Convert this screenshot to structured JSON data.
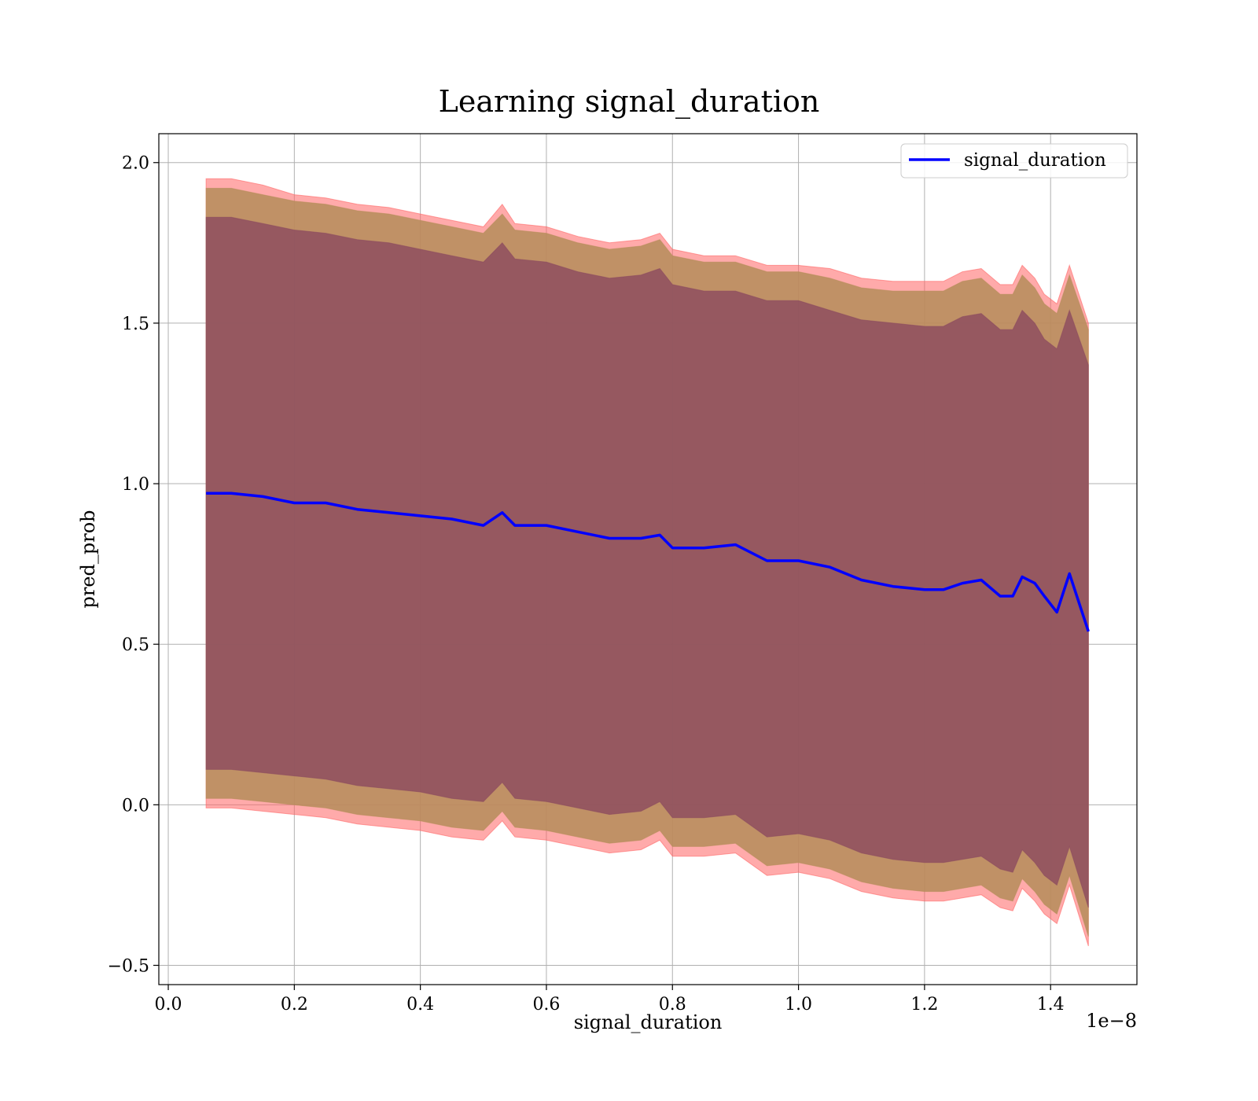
{
  "chart_data": {
    "type": "area",
    "title": "Learning signal_duration",
    "xlabel": "signal_duration",
    "ylabel": "pred_prob",
    "x_offset_label": "1e−8",
    "xlim": [
      -0.015,
      1.537
    ],
    "ylim": [
      -0.56,
      2.09
    ],
    "x_ticks": [
      0.0,
      0.2,
      0.4,
      0.6,
      0.8,
      1.0,
      1.2,
      1.4
    ],
    "x_tick_labels": [
      "0.0",
      "0.2",
      "0.4",
      "0.6",
      "0.8",
      "1.0",
      "1.2",
      "1.4"
    ],
    "y_ticks": [
      -0.5,
      0.0,
      0.5,
      1.0,
      1.5,
      2.0
    ],
    "y_tick_labels": [
      "−0.5",
      "0.0",
      "0.5",
      "1.0",
      "1.5",
      "2.0"
    ],
    "grid": true,
    "legend_position": "top-right",
    "colors": {
      "line": "#0000ff",
      "outer_band": "#ff6464",
      "middle_band": "#b58d5a",
      "inner_band": "#8b4a5f",
      "grid": "#b0b0b0"
    },
    "series": [
      {
        "name": "signal_duration",
        "x": [
          0.06,
          0.1,
          0.15,
          0.2,
          0.25,
          0.3,
          0.35,
          0.4,
          0.45,
          0.5,
          0.53,
          0.55,
          0.6,
          0.65,
          0.7,
          0.75,
          0.78,
          0.8,
          0.85,
          0.9,
          0.95,
          1.0,
          1.05,
          1.1,
          1.15,
          1.2,
          1.23,
          1.26,
          1.29,
          1.32,
          1.34,
          1.355,
          1.375,
          1.39,
          1.41,
          1.43,
          1.46
        ],
        "y": [
          0.97,
          0.97,
          0.96,
          0.94,
          0.94,
          0.92,
          0.91,
          0.9,
          0.89,
          0.87,
          0.91,
          0.87,
          0.87,
          0.85,
          0.83,
          0.83,
          0.84,
          0.8,
          0.8,
          0.81,
          0.76,
          0.76,
          0.74,
          0.7,
          0.68,
          0.67,
          0.67,
          0.69,
          0.7,
          0.65,
          0.65,
          0.71,
          0.69,
          0.65,
          0.6,
          0.72,
          0.54
        ]
      }
    ],
    "bands": [
      {
        "name": "outer",
        "x": [
          0.06,
          0.1,
          0.15,
          0.2,
          0.25,
          0.3,
          0.35,
          0.4,
          0.45,
          0.5,
          0.53,
          0.55,
          0.6,
          0.65,
          0.7,
          0.75,
          0.78,
          0.8,
          0.85,
          0.9,
          0.95,
          1.0,
          1.05,
          1.1,
          1.15,
          1.2,
          1.23,
          1.26,
          1.29,
          1.32,
          1.34,
          1.355,
          1.375,
          1.39,
          1.41,
          1.43,
          1.46
        ],
        "upper": [
          1.95,
          1.95,
          1.93,
          1.9,
          1.89,
          1.87,
          1.86,
          1.84,
          1.82,
          1.8,
          1.87,
          1.81,
          1.8,
          1.77,
          1.75,
          1.76,
          1.78,
          1.73,
          1.71,
          1.71,
          1.68,
          1.68,
          1.67,
          1.64,
          1.63,
          1.63,
          1.63,
          1.66,
          1.67,
          1.62,
          1.62,
          1.68,
          1.64,
          1.59,
          1.56,
          1.68,
          1.5
        ],
        "lower": [
          -0.01,
          -0.01,
          -0.02,
          -0.03,
          -0.04,
          -0.06,
          -0.07,
          -0.08,
          -0.1,
          -0.11,
          -0.05,
          -0.1,
          -0.11,
          -0.13,
          -0.15,
          -0.14,
          -0.11,
          -0.16,
          -0.16,
          -0.15,
          -0.22,
          -0.21,
          -0.23,
          -0.27,
          -0.29,
          -0.3,
          -0.3,
          -0.29,
          -0.28,
          -0.32,
          -0.33,
          -0.26,
          -0.3,
          -0.34,
          -0.37,
          -0.25,
          -0.44
        ]
      },
      {
        "name": "middle",
        "x": [
          0.06,
          0.1,
          0.15,
          0.2,
          0.25,
          0.3,
          0.35,
          0.4,
          0.45,
          0.5,
          0.53,
          0.55,
          0.6,
          0.65,
          0.7,
          0.75,
          0.78,
          0.8,
          0.85,
          0.9,
          0.95,
          1.0,
          1.05,
          1.1,
          1.15,
          1.2,
          1.23,
          1.26,
          1.29,
          1.32,
          1.34,
          1.355,
          1.375,
          1.39,
          1.41,
          1.43,
          1.46
        ],
        "upper": [
          1.92,
          1.92,
          1.9,
          1.88,
          1.87,
          1.85,
          1.84,
          1.82,
          1.8,
          1.78,
          1.84,
          1.79,
          1.78,
          1.75,
          1.73,
          1.74,
          1.76,
          1.71,
          1.69,
          1.69,
          1.66,
          1.66,
          1.64,
          1.61,
          1.6,
          1.6,
          1.6,
          1.63,
          1.64,
          1.59,
          1.59,
          1.65,
          1.61,
          1.56,
          1.53,
          1.65,
          1.48
        ],
        "lower": [
          0.02,
          0.02,
          0.01,
          0.0,
          -0.01,
          -0.03,
          -0.04,
          -0.05,
          -0.07,
          -0.08,
          -0.02,
          -0.07,
          -0.08,
          -0.1,
          -0.12,
          -0.11,
          -0.08,
          -0.13,
          -0.13,
          -0.12,
          -0.19,
          -0.18,
          -0.2,
          -0.24,
          -0.26,
          -0.27,
          -0.27,
          -0.26,
          -0.25,
          -0.29,
          -0.3,
          -0.23,
          -0.27,
          -0.31,
          -0.34,
          -0.22,
          -0.41
        ]
      },
      {
        "name": "inner",
        "x": [
          0.06,
          0.1,
          0.15,
          0.2,
          0.25,
          0.3,
          0.35,
          0.4,
          0.45,
          0.5,
          0.53,
          0.55,
          0.6,
          0.65,
          0.7,
          0.75,
          0.78,
          0.8,
          0.85,
          0.9,
          0.95,
          1.0,
          1.05,
          1.1,
          1.15,
          1.2,
          1.23,
          1.26,
          1.29,
          1.32,
          1.34,
          1.355,
          1.375,
          1.39,
          1.41,
          1.43,
          1.46
        ],
        "upper": [
          1.83,
          1.83,
          1.81,
          1.79,
          1.78,
          1.76,
          1.75,
          1.73,
          1.71,
          1.69,
          1.75,
          1.7,
          1.69,
          1.66,
          1.64,
          1.65,
          1.67,
          1.62,
          1.6,
          1.6,
          1.57,
          1.57,
          1.54,
          1.51,
          1.5,
          1.49,
          1.49,
          1.52,
          1.53,
          1.48,
          1.48,
          1.54,
          1.5,
          1.45,
          1.42,
          1.54,
          1.37
        ],
        "lower": [
          0.11,
          0.11,
          0.1,
          0.09,
          0.08,
          0.06,
          0.05,
          0.04,
          0.02,
          0.01,
          0.07,
          0.02,
          0.01,
          -0.01,
          -0.03,
          -0.02,
          0.01,
          -0.04,
          -0.04,
          -0.03,
          -0.1,
          -0.09,
          -0.11,
          -0.15,
          -0.17,
          -0.18,
          -0.18,
          -0.17,
          -0.16,
          -0.2,
          -0.21,
          -0.14,
          -0.18,
          -0.22,
          -0.25,
          -0.13,
          -0.32
        ]
      }
    ]
  }
}
